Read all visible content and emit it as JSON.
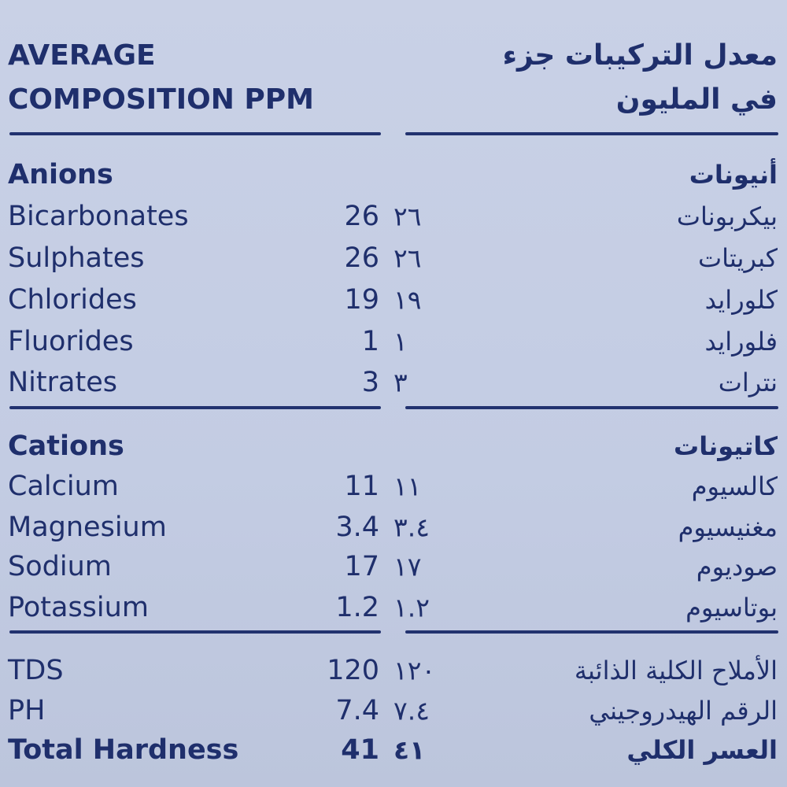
{
  "header": {
    "en_line1": "AVERAGE",
    "en_line2": "COMPOSITION PPM",
    "ar_line1": "معدل التركيبات جزء",
    "ar_line2": "في المليون"
  },
  "anions": {
    "title_en": "Anions",
    "title_ar": "أنيونات",
    "rows": [
      {
        "en": "Bicarbonates",
        "value": "26",
        "value_ar": "٢٦",
        "ar": "بيكربونات"
      },
      {
        "en": "Sulphates",
        "value": "26",
        "value_ar": "٢٦",
        "ar": "كبريتات"
      },
      {
        "en": "Chlorides",
        "value": "19",
        "value_ar": "١٩",
        "ar": "كلورايد"
      },
      {
        "en": "Fluorides",
        "value": "1",
        "value_ar": "١",
        "ar": "فلورايد"
      },
      {
        "en": "Nitrates",
        "value": "3",
        "value_ar": "٣",
        "ar": "نترات"
      }
    ]
  },
  "cations": {
    "title_en": "Cations",
    "title_ar": "كاتيونات",
    "rows": [
      {
        "en": "Calcium",
        "value": "11",
        "value_ar": "١١",
        "ar": "كالسيوم"
      },
      {
        "en": "Magnesium",
        "value": "3.4",
        "value_ar": "٣.٤",
        "ar": "مغنيسيوم"
      },
      {
        "en": "Sodium",
        "value": "17",
        "value_ar": "١٧",
        "ar": "صوديوم"
      },
      {
        "en": "Potassium",
        "value": "1.2",
        "value_ar": "١.٢",
        "ar": "بوتاسيوم"
      }
    ]
  },
  "totals": {
    "rows": [
      {
        "en": "TDS",
        "value": "120",
        "value_ar": "١٢٠",
        "ar": "الأملاح الكلية الذائبة"
      },
      {
        "en": "PH",
        "value": "7.4",
        "value_ar": "٧.٤",
        "ar": "الرقم الهيدروجيني"
      },
      {
        "en": "Total Hardness",
        "value": "41",
        "value_ar": "٤١",
        "ar": "العسر الكلي"
      }
    ]
  },
  "colors": {
    "text": "#1f2f6c",
    "background": "#c5cee4"
  }
}
